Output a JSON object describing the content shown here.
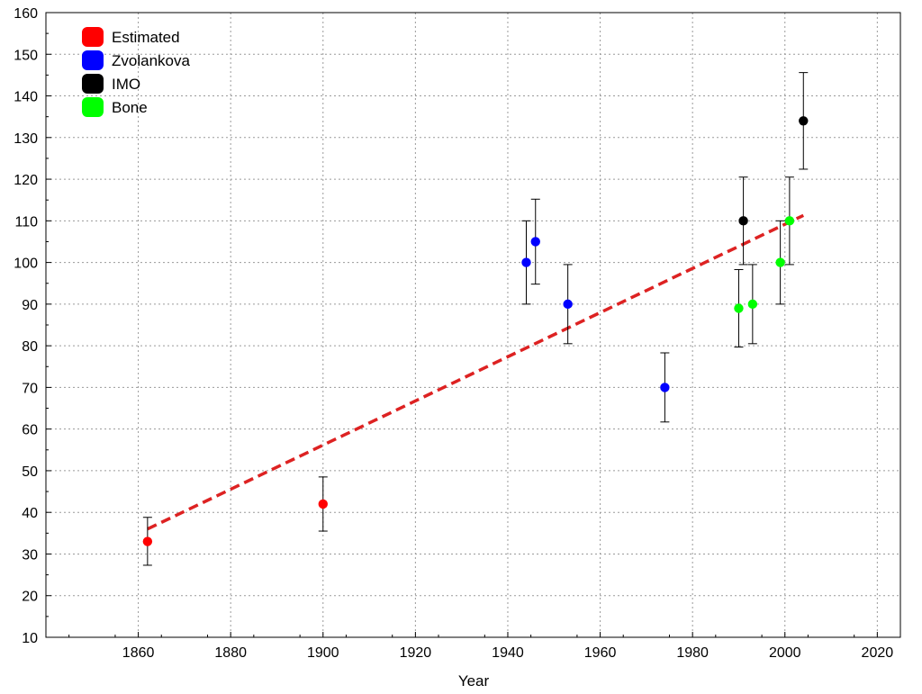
{
  "chart_data": {
    "type": "scatter",
    "title": "",
    "xlabel": "Year",
    "ylabel": "",
    "xlim": [
      1840,
      2025
    ],
    "ylim": [
      10,
      160
    ],
    "x_ticks": [
      1860,
      1880,
      1900,
      1920,
      1940,
      1960,
      1980,
      2000,
      2020
    ],
    "y_ticks": [
      10,
      20,
      30,
      40,
      50,
      60,
      70,
      80,
      90,
      100,
      110,
      120,
      130,
      140,
      150,
      160
    ],
    "grid": true,
    "legend_position": "top-left",
    "series": [
      {
        "name": "Estimated",
        "color": "#ff0000",
        "points": [
          {
            "x": 1862,
            "y": 33,
            "err_low": 27.3,
            "err_high": 38.8
          },
          {
            "x": 1900,
            "y": 42,
            "err_low": 35.5,
            "err_high": 48.5
          }
        ]
      },
      {
        "name": "Zvolankova",
        "color": "#0000ff",
        "points": [
          {
            "x": 1944,
            "y": 100,
            "err_low": 90,
            "err_high": 110
          },
          {
            "x": 1946,
            "y": 105,
            "err_low": 94.8,
            "err_high": 115.2
          },
          {
            "x": 1953,
            "y": 90,
            "err_low": 80.5,
            "err_high": 99.5
          },
          {
            "x": 1974,
            "y": 70,
            "err_low": 61.7,
            "err_high": 78.3
          }
        ]
      },
      {
        "name": "IMO",
        "color": "#000000",
        "points": [
          {
            "x": 1991,
            "y": 110,
            "err_low": 99.5,
            "err_high": 120.5
          },
          {
            "x": 2004,
            "y": 134,
            "err_low": 122.4,
            "err_high": 145.6
          }
        ]
      },
      {
        "name": "Bone",
        "color": "#00ff00",
        "points": [
          {
            "x": 1990,
            "y": 89,
            "err_low": 79.7,
            "err_high": 98.3
          },
          {
            "x": 1993,
            "y": 90,
            "err_low": 80.5,
            "err_high": 99.5
          },
          {
            "x": 1999,
            "y": 100,
            "err_low": 90,
            "err_high": 110
          },
          {
            "x": 2001,
            "y": 110,
            "err_low": 99.5,
            "err_high": 120.5
          }
        ]
      }
    ],
    "trend_line": {
      "color": "#dd2222",
      "style": "dashed",
      "points": [
        {
          "x": 1862,
          "y": 36
        },
        {
          "x": 2004,
          "y": 111.3
        }
      ]
    }
  }
}
